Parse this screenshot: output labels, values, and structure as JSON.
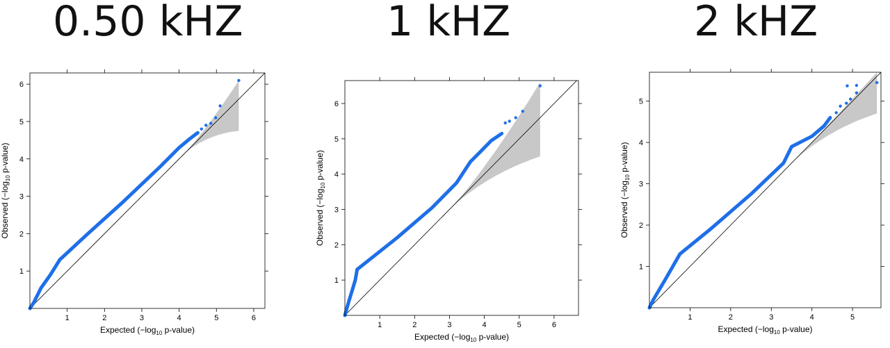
{
  "titles": [
    "0.50 kHZ",
    "1 kHZ",
    "2 kHZ"
  ],
  "axis_labels": {
    "x": {
      "pre": "Expected (−log",
      "sub": "10",
      "post": " p-value)"
    },
    "y": {
      "pre": "Observed (−log",
      "sub": "10",
      "post": " p-value)"
    }
  },
  "colors": {
    "points": "#1e6fe8",
    "band": "#c8c8c8",
    "diag": "#000000"
  },
  "chart_data": [
    {
      "type": "scatter",
      "title": "0.50 kHZ",
      "xlabel": "Expected (−log10 p-value)",
      "ylabel": "Observed (−log10 p-value)",
      "xlim": [
        0,
        6.3
      ],
      "ylim": [
        0,
        6.3
      ],
      "x_ticks": [
        1,
        2,
        3,
        4,
        5,
        6
      ],
      "y_ticks": [
        1,
        2,
        3,
        4,
        5,
        6
      ],
      "grid": false,
      "reference_line": "y = x",
      "confidence_band": {
        "start_x": 4.1,
        "end_x": 5.6,
        "upper_end": 6.1,
        "lower_end": 4.75
      },
      "curve": [
        [
          0,
          0
        ],
        [
          0.1,
          0.15
        ],
        [
          0.3,
          0.55
        ],
        [
          0.55,
          0.9
        ],
        [
          0.8,
          1.3
        ],
        [
          1.5,
          1.95
        ],
        [
          2.5,
          2.85
        ],
        [
          3.5,
          3.8
        ],
        [
          4.0,
          4.3
        ],
        [
          4.3,
          4.55
        ],
        [
          4.5,
          4.7
        ]
      ],
      "points": [
        [
          4.6,
          4.8
        ],
        [
          4.72,
          4.9
        ],
        [
          4.85,
          4.95
        ],
        [
          4.98,
          5.1
        ],
        [
          5.1,
          5.42
        ],
        [
          5.6,
          6.1
        ]
      ]
    },
    {
      "type": "scatter",
      "title": "1 kHZ",
      "xlabel": "Expected (−log10 p-value)",
      "ylabel": "Observed (−log10 p-value)",
      "xlim": [
        0,
        6.7
      ],
      "ylim": [
        0,
        6.65
      ],
      "x_ticks": [
        1,
        2,
        3,
        4,
        5,
        6
      ],
      "y_ticks": [
        1,
        2,
        3,
        4,
        5,
        6
      ],
      "grid": false,
      "reference_line": "y = x",
      "confidence_band": {
        "start_x": 3.0,
        "end_x": 5.6,
        "upper_end": 6.6,
        "lower_end": 4.5
      },
      "curve": [
        [
          0,
          0
        ],
        [
          0.1,
          0.35
        ],
        [
          0.3,
          1.0
        ],
        [
          0.35,
          1.3
        ],
        [
          0.8,
          1.65
        ],
        [
          1.5,
          2.2
        ],
        [
          2.5,
          3.05
        ],
        [
          3.2,
          3.75
        ],
        [
          3.6,
          4.35
        ],
        [
          3.9,
          4.65
        ],
        [
          4.2,
          4.95
        ],
        [
          4.5,
          5.15
        ]
      ],
      "points": [
        [
          4.6,
          5.45
        ],
        [
          4.72,
          5.5
        ],
        [
          4.9,
          5.6
        ],
        [
          5.1,
          5.78
        ],
        [
          5.6,
          6.5
        ]
      ]
    },
    {
      "type": "scatter",
      "title": "2 kHZ",
      "xlabel": "Expected (−log10 p-value)",
      "ylabel": "Observed (−log10 p-value)",
      "xlim": [
        0,
        5.7
      ],
      "ylim": [
        0,
        5.7
      ],
      "x_ticks": [
        1,
        2,
        3,
        4,
        5
      ],
      "y_ticks": [
        1,
        2,
        3,
        4,
        5
      ],
      "grid": false,
      "reference_line": "y = x",
      "confidence_band": {
        "start_x": 3.5,
        "end_x": 5.6,
        "upper_end": 5.7,
        "lower_end": 4.7
      },
      "curve": [
        [
          0,
          0
        ],
        [
          0.1,
          0.2
        ],
        [
          0.4,
          0.7
        ],
        [
          0.75,
          1.3
        ],
        [
          1.5,
          1.9
        ],
        [
          2.5,
          2.75
        ],
        [
          3.3,
          3.5
        ],
        [
          3.5,
          3.9
        ],
        [
          4.0,
          4.15
        ],
        [
          4.3,
          4.4
        ],
        [
          4.45,
          4.6
        ]
      ],
      "points": [
        [
          4.6,
          4.72
        ],
        [
          4.7,
          4.88
        ],
        [
          4.85,
          4.95
        ],
        [
          4.95,
          5.05
        ],
        [
          5.1,
          5.2
        ],
        [
          4.87,
          5.37
        ],
        [
          5.1,
          5.38
        ],
        [
          5.6,
          5.45
        ]
      ]
    }
  ]
}
